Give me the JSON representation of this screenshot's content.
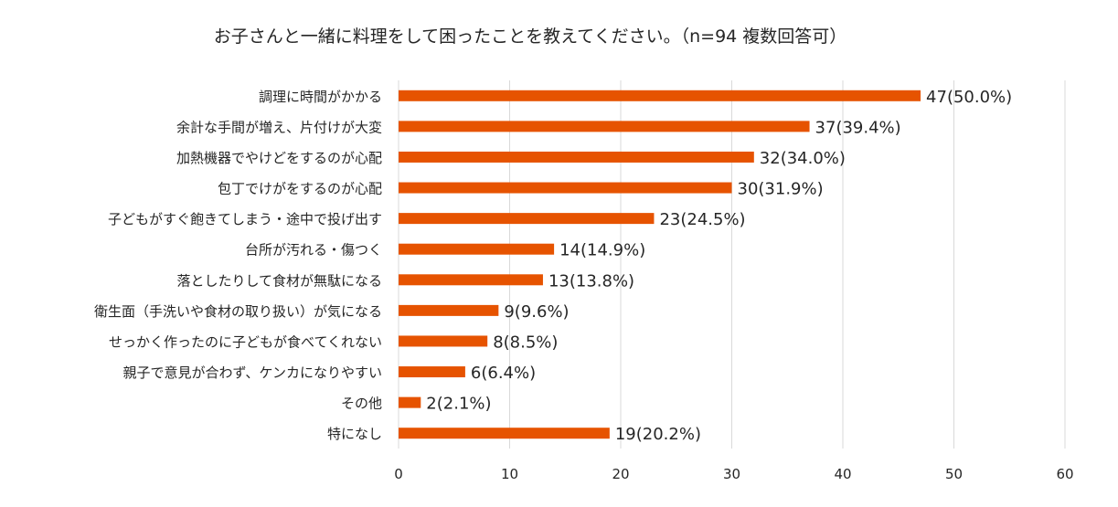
{
  "chart_data": {
    "type": "bar",
    "orientation": "horizontal",
    "title": "お子さんと一緒に料理をして困ったことを教えてください。（n=94  複数回答可）",
    "categories": [
      "調理に時間がかかる",
      "余計な手間が増え、片付けが大変",
      "加熱機器でやけどをするのが心配",
      "包丁でけがをするのが心配",
      "子どもがすぐ飽きてしまう・途中で投げ出す",
      "台所が汚れる・傷つく",
      "落としたりして食材が無駄になる",
      "衛生面（手洗いや食材の取り扱い）が気になる",
      "せっかく作ったのに子どもが食べてくれない",
      "親子で意見が合わず、ケンカになりやすい",
      "その他",
      "特になし"
    ],
    "values": [
      47,
      37,
      32,
      30,
      23,
      14,
      13,
      9,
      8,
      6,
      2,
      19
    ],
    "data_labels": [
      "47(50.0%)",
      "37(39.4%)",
      "32(34.0%)",
      "30(31.9%)",
      "23(24.5%)",
      "14(14.9%)",
      "13(13.8%)",
      "9(9.6%)",
      "8(8.5%)",
      "6(6.4%)",
      "2(2.1%)",
      "19(20.2%)"
    ],
    "xlim": [
      0,
      60
    ],
    "xticks": [
      "0",
      "10",
      "20",
      "30",
      "40",
      "50",
      "60"
    ],
    "grid": true,
    "legend": "none",
    "bar_color": "#E65300",
    "grid_color": "#D9D9D9"
  }
}
